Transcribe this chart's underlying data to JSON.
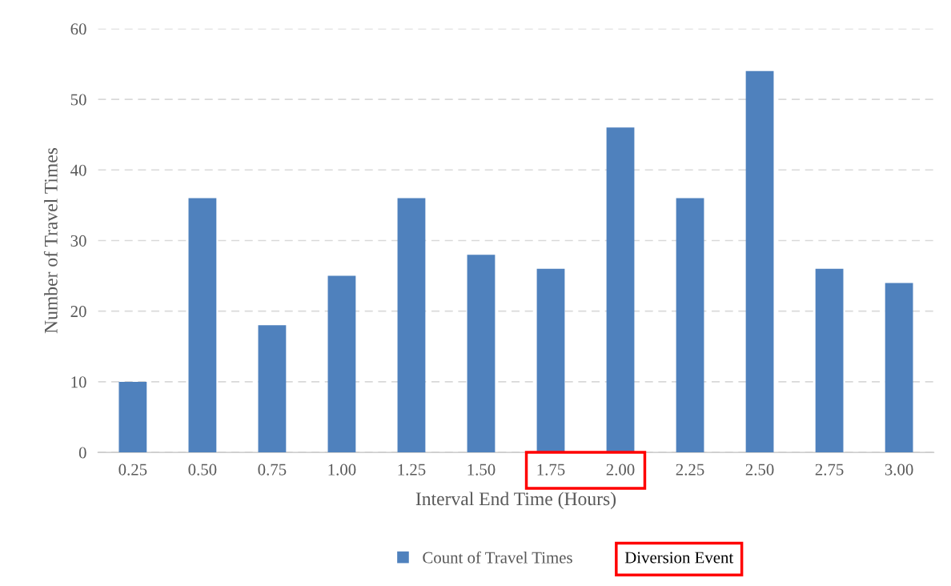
{
  "chart_data": {
    "type": "bar",
    "xlabel": "Interval End Time (Hours)",
    "ylabel": "Number of Travel Times",
    "categories": [
      "0.25",
      "0.50",
      "0.75",
      "1.00",
      "1.25",
      "1.50",
      "1.75",
      "2.00",
      "2.25",
      "2.50",
      "2.75",
      "3.00"
    ],
    "series": [
      {
        "name": "Count of Travel Times",
        "color": "#4f81bd",
        "values": [
          10,
          36,
          18,
          25,
          36,
          28,
          26,
          46,
          36,
          54,
          26,
          24
        ]
      }
    ],
    "ylim": [
      0,
      60
    ],
    "yticks": [
      0,
      10,
      20,
      30,
      40,
      50,
      60
    ],
    "grid": "y",
    "legend": "bottom",
    "annotations": [
      "Diversion Event"
    ]
  }
}
